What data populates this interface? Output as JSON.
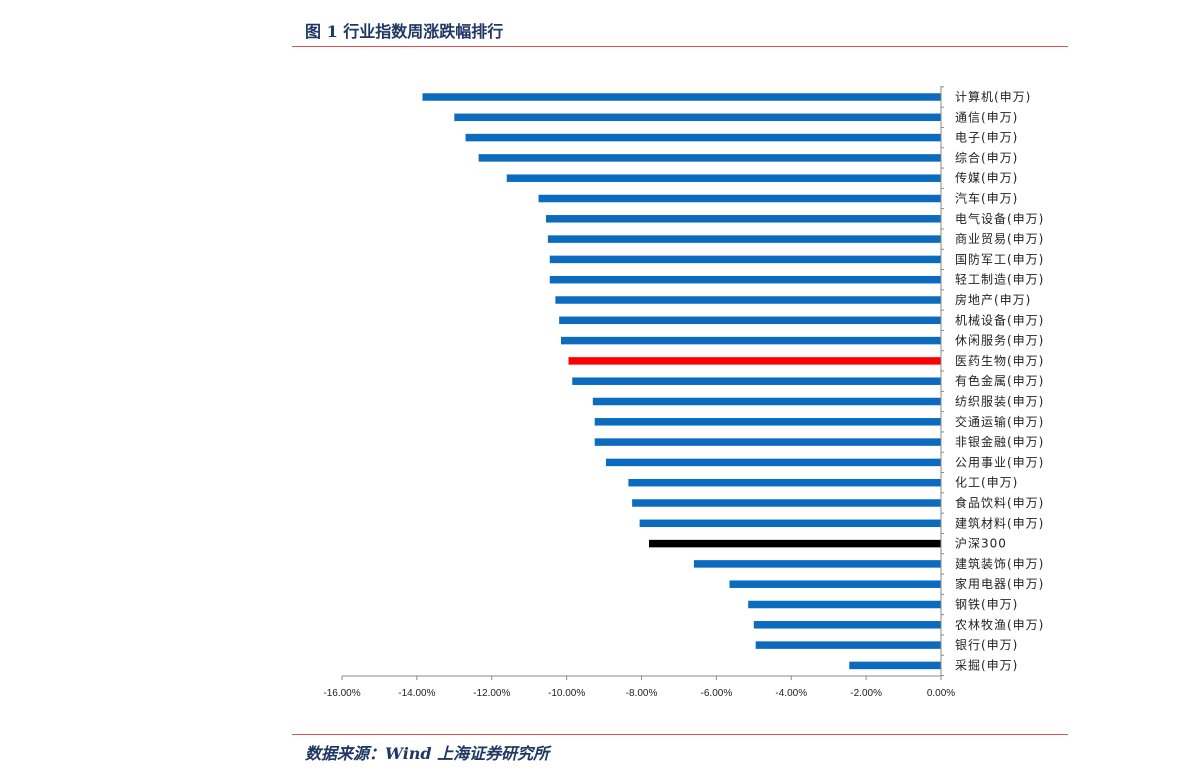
{
  "header": {
    "title": "图 1 行业指数周涨跌幅排行"
  },
  "footer": {
    "source": "数据来源：Wind  上海证券研究所"
  },
  "colors": {
    "default_bar": "#0b6cbf",
    "highlight_bar": "#ff0000",
    "benchmark_bar": "#000000",
    "rule": "#e84c4c",
    "title": "#1f3864"
  },
  "chart_data": {
    "type": "bar",
    "orientation": "horizontal",
    "title": "",
    "xlabel": "",
    "ylabel": "",
    "xlim": [
      -16,
      0
    ],
    "x_ticks": [
      "-16.00%",
      "-14.00%",
      "-12.00%",
      "-10.00%",
      "-8.00%",
      "-6.00%",
      "-4.00%",
      "-2.00%",
      "0.00%"
    ],
    "grid": false,
    "legend": "none",
    "categories": [
      "计算机(申万)",
      "通信(申万)",
      "电子(申万)",
      "综合(申万)",
      "传媒(申万)",
      "汽车(申万)",
      "电气设备(申万)",
      "商业贸易(申万)",
      "国防军工(申万)",
      "轻工制造(申万)",
      "房地产(申万)",
      "机械设备(申万)",
      "休闲服务(申万)",
      "医药生物(申万)",
      "有色金属(申万)",
      "纺织服装(申万)",
      "交通运输(申万)",
      "非银金融(申万)",
      "公用事业(申万)",
      "化工(申万)",
      "食品饮料(申万)",
      "建筑材料(申万)",
      "沪深300",
      "建筑装饰(申万)",
      "家用电器(申万)",
      "钢铁(申万)",
      "农林牧渔(申万)",
      "银行(申万)",
      "采掘(申万)"
    ],
    "values": [
      -13.85,
      -13.0,
      -12.7,
      -12.35,
      -11.6,
      -10.75,
      -10.55,
      -10.5,
      -10.45,
      -10.45,
      -10.3,
      -10.2,
      -10.15,
      -9.95,
      -9.85,
      -9.3,
      -9.25,
      -9.25,
      -8.95,
      -8.35,
      -8.25,
      -8.05,
      -7.8,
      -6.6,
      -5.65,
      -5.15,
      -5.0,
      -4.95,
      -2.45
    ],
    "highlight": {
      "医药生物(申万)": "highlight",
      "沪深300": "benchmark"
    }
  }
}
